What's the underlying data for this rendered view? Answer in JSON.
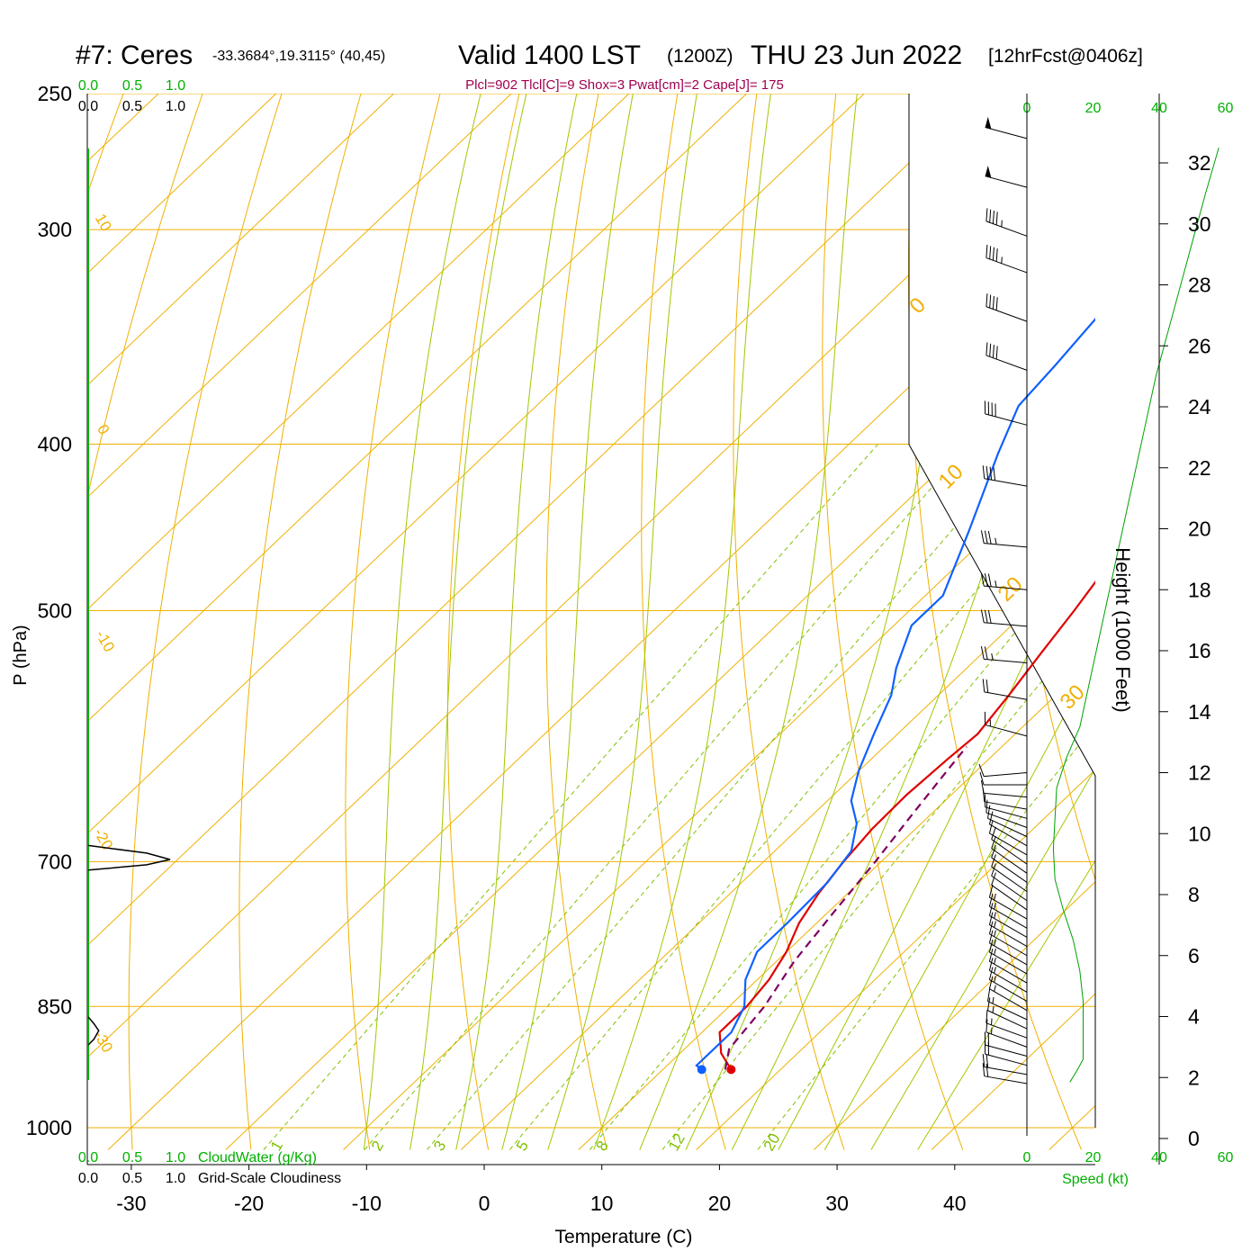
{
  "header": {
    "station": "#7: Ceres",
    "coords": "-33.3684°,19.3115° (40,45)",
    "valid": "Valid 1400 LST",
    "utc": "(1200Z)",
    "date": "THU 23 Jun 2022",
    "forecast": "[12hrFcst@0406z]",
    "indices": "Plcl=902 Tlcl[C]=9 Shox=3 Pwat[cm]=2 Cape[J]= 175"
  },
  "chart_data": {
    "type": "line",
    "xlabel": "Temperature (C)",
    "ylabel": "P (hPa)",
    "y2label": "Height (1000 Feet)",
    "xlim": [
      -34,
      46
    ],
    "ylim": [
      1030,
      250
    ],
    "y_scale": "log",
    "x_ticks": [
      -30,
      -20,
      -10,
      0,
      10,
      20,
      30,
      40
    ],
    "pressure_ticks": [
      250,
      300,
      400,
      500,
      700,
      850,
      1000
    ],
    "height_ticks": [
      0,
      2,
      4,
      6,
      8,
      10,
      12,
      14,
      16,
      18,
      20,
      22,
      24,
      26,
      28,
      30,
      32
    ],
    "isotherm_labels": [
      "0",
      "10",
      "20",
      "30"
    ],
    "left_isotherm_labels": [
      "10",
      "0",
      "-10",
      "-20",
      "-30"
    ],
    "mixing_ratio_labels": [
      "1",
      "2",
      "3",
      "5",
      "8",
      "12",
      "20"
    ],
    "colors": {
      "temperature": "#e00000",
      "dewpoint": "#1060ff",
      "parcel": "#800060",
      "isotherm": "#f0b000",
      "adiabat": "#a0c800",
      "mixing_ratio": "#80c000",
      "accent": "#00b000",
      "title_indices": "#a00050"
    },
    "series": [
      {
        "name": "Temperature",
        "points": [
          [
            15.8,
            925
          ],
          [
            13.5,
            905
          ],
          [
            11.5,
            880
          ],
          [
            11.5,
            850
          ],
          [
            11,
            820
          ],
          [
            10,
            790
          ],
          [
            8.5,
            760
          ],
          [
            7.5,
            730
          ],
          [
            6.8,
            700
          ],
          [
            6.3,
            670
          ],
          [
            6.2,
            640
          ],
          [
            6.5,
            610
          ],
          [
            6.8,
            590
          ],
          [
            6,
            560
          ],
          [
            5,
            530
          ],
          [
            4,
            500
          ],
          [
            3,
            475
          ],
          [
            2,
            450
          ],
          [
            1,
            425
          ],
          [
            0,
            400
          ],
          [
            -1,
            380
          ],
          [
            -2,
            360
          ],
          [
            -3,
            340
          ],
          [
            -3.5,
            320
          ],
          [
            -3.5,
            310
          ],
          [
            -3,
            300
          ],
          [
            -2,
            285
          ],
          [
            -1,
            275
          ],
          [
            0,
            265
          ]
        ]
      },
      {
        "name": "Dewpoint",
        "points": [
          [
            13.3,
            925
          ],
          [
            12.5,
            920
          ],
          [
            12.5,
            880
          ],
          [
            11.3,
            850
          ],
          [
            9,
            820
          ],
          [
            7.5,
            790
          ],
          [
            7.5,
            760
          ],
          [
            7.3,
            720
          ],
          [
            6.5,
            690
          ],
          [
            4.5,
            665
          ],
          [
            2,
            645
          ],
          [
            0,
            620
          ],
          [
            -2,
            590
          ],
          [
            -4,
            560
          ],
          [
            -6,
            540
          ],
          [
            -8.5,
            510
          ],
          [
            -8.5,
            490
          ],
          [
            -12,
            450
          ],
          [
            -16.5,
            405
          ],
          [
            -19,
            380
          ],
          [
            -19.5,
            360
          ],
          [
            -20.5,
            330
          ],
          [
            -21.5,
            310
          ],
          [
            -22,
            290
          ],
          [
            -22.5,
            275
          ],
          [
            -23,
            265
          ]
        ]
      },
      {
        "name": "Parcel",
        "points": [
          [
            15.3,
            925
          ],
          [
            13.8,
            900
          ],
          [
            13,
            850
          ],
          [
            11.5,
            800
          ],
          [
            10.5,
            750
          ],
          [
            9.5,
            700
          ],
          [
            8.5,
            660
          ],
          [
            7.5,
            620
          ],
          [
            7,
            600
          ]
        ]
      }
    ],
    "cloud_profile": {
      "labels": [
        "0.0",
        "0.5",
        "1.0"
      ],
      "points": [
        [
          0,
          685
        ],
        [
          0.5,
          692
        ],
        [
          0.7,
          698
        ],
        [
          0.5,
          703
        ],
        [
          0,
          708
        ]
      ],
      "legend1": "CloudWater (g/Kg)",
      "legend2": "Grid-Scale Cloudiness",
      "lower_points": [
        [
          0,
          862
        ],
        [
          0.05,
          870
        ],
        [
          0.09,
          878
        ],
        [
          0.05,
          888
        ],
        [
          0,
          895
        ]
      ]
    },
    "wind_profile": {
      "scale_labels": [
        "0",
        "20",
        "40",
        "60"
      ],
      "xlabel": "Speed (kt)",
      "speed_points": [
        [
          13,
          1850
        ],
        [
          15,
          2200
        ],
        [
          17,
          2600
        ],
        [
          17,
          3500
        ],
        [
          17,
          4500
        ],
        [
          16,
          5500
        ],
        [
          14,
          6500
        ],
        [
          11,
          7500
        ],
        [
          8.5,
          8500
        ],
        [
          8,
          9500
        ],
        [
          8.5,
          10500
        ],
        [
          9,
          11500
        ],
        [
          12,
          12500
        ],
        [
          16,
          13500
        ],
        [
          19,
          15000
        ],
        [
          23,
          17000
        ],
        [
          27,
          19000
        ],
        [
          31,
          21000
        ],
        [
          35,
          23000
        ],
        [
          39,
          25000
        ],
        [
          44,
          27000
        ],
        [
          49,
          29000
        ],
        [
          54,
          31000
        ],
        [
          58,
          32500
        ]
      ],
      "barbs": [
        {
          "h": 1800,
          "dir": 280,
          "spd": 20
        },
        {
          "h": 2100,
          "dir": 280,
          "spd": 20
        },
        {
          "h": 2400,
          "dir": 285,
          "spd": 20
        },
        {
          "h": 2700,
          "dir": 285,
          "spd": 20
        },
        {
          "h": 3000,
          "dir": 290,
          "spd": 15
        },
        {
          "h": 3300,
          "dir": 290,
          "spd": 15
        },
        {
          "h": 3600,
          "dir": 295,
          "spd": 15
        },
        {
          "h": 3900,
          "dir": 295,
          "spd": 15
        },
        {
          "h": 4200,
          "dir": 300,
          "spd": 15
        },
        {
          "h": 4500,
          "dir": 300,
          "spd": 15
        },
        {
          "h": 4800,
          "dir": 300,
          "spd": 15
        },
        {
          "h": 5100,
          "dir": 300,
          "spd": 15
        },
        {
          "h": 5400,
          "dir": 300,
          "spd": 15
        },
        {
          "h": 5700,
          "dir": 300,
          "spd": 15
        },
        {
          "h": 6000,
          "dir": 300,
          "spd": 15
        },
        {
          "h": 6300,
          "dir": 300,
          "spd": 15
        },
        {
          "h": 6600,
          "dir": 300,
          "spd": 15
        },
        {
          "h": 6900,
          "dir": 300,
          "spd": 15
        },
        {
          "h": 7200,
          "dir": 300,
          "spd": 15
        },
        {
          "h": 7500,
          "dir": 305,
          "spd": 10
        },
        {
          "h": 7800,
          "dir": 305,
          "spd": 10
        },
        {
          "h": 8100,
          "dir": 305,
          "spd": 10
        },
        {
          "h": 8400,
          "dir": 305,
          "spd": 10
        },
        {
          "h": 8700,
          "dir": 305,
          "spd": 10
        },
        {
          "h": 9000,
          "dir": 305,
          "spd": 10
        },
        {
          "h": 9300,
          "dir": 300,
          "spd": 10
        },
        {
          "h": 9600,
          "dir": 300,
          "spd": 10
        },
        {
          "h": 9900,
          "dir": 295,
          "spd": 10
        },
        {
          "h": 10200,
          "dir": 290,
          "spd": 10
        },
        {
          "h": 10500,
          "dir": 285,
          "spd": 10
        },
        {
          "h": 10800,
          "dir": 280,
          "spd": 10
        },
        {
          "h": 11200,
          "dir": 275,
          "spd": 10
        },
        {
          "h": 11600,
          "dir": 270,
          "spd": 10
        },
        {
          "h": 12000,
          "dir": 265,
          "spd": 10
        },
        {
          "h": 13200,
          "dir": 285,
          "spd": 15
        },
        {
          "h": 14400,
          "dir": 280,
          "spd": 20
        },
        {
          "h": 15600,
          "dir": 275,
          "spd": 25
        },
        {
          "h": 16800,
          "dir": 275,
          "spd": 30
        },
        {
          "h": 18000,
          "dir": 275,
          "spd": 35
        },
        {
          "h": 19400,
          "dir": 275,
          "spd": 35
        },
        {
          "h": 21400,
          "dir": 280,
          "spd": 40
        },
        {
          "h": 23400,
          "dir": 285,
          "spd": 40
        },
        {
          "h": 25200,
          "dir": 290,
          "spd": 40
        },
        {
          "h": 26800,
          "dir": 290,
          "spd": 40
        },
        {
          "h": 28400,
          "dir": 290,
          "spd": 45
        },
        {
          "h": 29600,
          "dir": 290,
          "spd": 45
        },
        {
          "h": 31200,
          "dir": 285,
          "spd": 50
        },
        {
          "h": 32800,
          "dir": 285,
          "spd": 50
        }
      ]
    }
  }
}
